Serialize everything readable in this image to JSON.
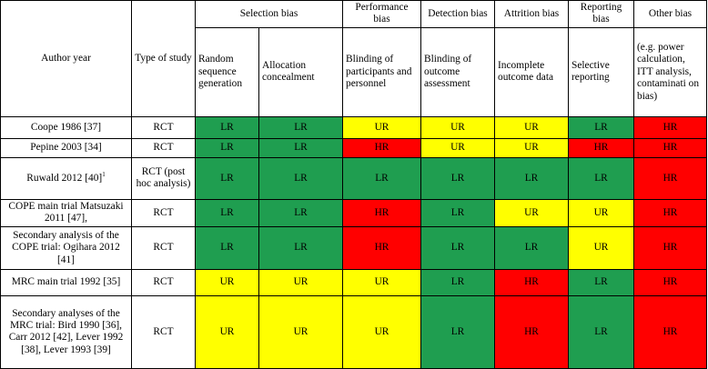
{
  "headers": {
    "author": "Author year",
    "type": "Type of study",
    "groups": [
      "Selection bias",
      "Performance bias",
      "Detection bias",
      "Attrition bias",
      "Reporting bias",
      "Other bias"
    ],
    "subs": [
      "Random sequence generation",
      "Allocation concealment",
      "Blinding of participants and personnel",
      "Blinding of outcome assessment",
      "Incomplete outcome data",
      "Selective reporting",
      "(e.g. power calculation, ITT analysis, contaminati on bias)"
    ]
  },
  "colors": {
    "LR": "#1f9e50",
    "UR": "#ffff00",
    "HR": "#ff0000"
  },
  "rows": [
    {
      "author": "Coope 1986 [37]",
      "type": "RCT",
      "cells": [
        "LR",
        "LR",
        "UR",
        "UR",
        "UR",
        "LR",
        "HR"
      ]
    },
    {
      "author": "Pepine 2003 [34]",
      "type": "RCT",
      "cells": [
        "LR",
        "LR",
        "HR",
        "UR",
        "UR",
        "HR",
        "HR"
      ]
    },
    {
      "author": "Ruwald 2012 [40]",
      "author_sup": "1",
      "type": "RCT (post hoc analysis)",
      "cells": [
        "LR",
        "LR",
        "LR",
        "LR",
        "LR",
        "LR",
        "HR"
      ]
    },
    {
      "author": "COPE main trial Matsuzaki 2011 [47],",
      "type": "RCT",
      "cells": [
        "LR",
        "LR",
        "HR",
        "LR",
        "UR",
        "UR",
        "HR"
      ]
    },
    {
      "author": "Secondary analysis of the COPE trial: Ogihara 2012 [41]",
      "type": "RCT",
      "cells": [
        "LR",
        "LR",
        "HR",
        "LR",
        "LR",
        "UR",
        "HR"
      ]
    },
    {
      "author": "MRC main trial 1992 [35]",
      "type": "RCT",
      "cells": [
        "UR",
        "UR",
        "UR",
        "LR",
        "HR",
        "LR",
        "HR"
      ]
    },
    {
      "author": "Secondary analyses of the MRC trial: Bird 1990 [36], Carr 2012 [42], Lever 1992 [38], Lever 1993 [39]",
      "type": "RCT",
      "cells": [
        "UR",
        "UR",
        "UR",
        "LR",
        "HR",
        "LR",
        "HR"
      ]
    }
  ]
}
